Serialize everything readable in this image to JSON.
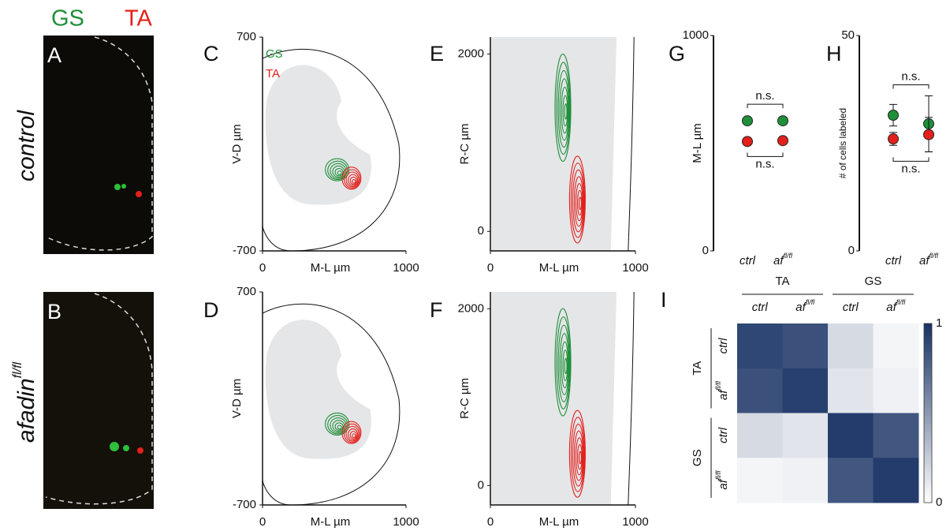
{
  "legend": {
    "gs": "GS",
    "ta": "TA"
  },
  "images": [
    {
      "label": "A",
      "row_label": "control"
    },
    {
      "label": "B",
      "row_label": "afadin",
      "row_label_superscript": "fl/fl"
    }
  ],
  "chart_data": [
    {
      "type": "contour",
      "label": "C",
      "xlabel": "M-L µm",
      "ylabel": "V-D µm",
      "xlim": [
        0,
        1000
      ],
      "ylim": [
        -700,
        700
      ],
      "xticks": [
        0,
        1000
      ],
      "yticks": [
        -700,
        700
      ],
      "series": [
        {
          "name": "GS",
          "color": "#1f8f3a"
        },
        {
          "name": "TA",
          "color": "#e3201b"
        }
      ]
    },
    {
      "type": "contour",
      "label": "D",
      "xlabel": "M-L µm",
      "ylabel": "V-D µm",
      "xlim": [
        0,
        1000
      ],
      "ylim": [
        -700,
        700
      ],
      "xticks": [
        0,
        1000
      ],
      "yticks": [
        -700,
        700
      ],
      "colors": [
        "#1f8f3a",
        "#e3201b"
      ]
    },
    {
      "type": "contour",
      "label": "E",
      "xlabel": "M-L µm",
      "ylabel": "R-C µm",
      "xlim": [
        0,
        1000
      ],
      "ylim": [
        -220,
        2190
      ],
      "xticks": [
        0,
        1000
      ],
      "yticks": [
        0,
        2000
      ],
      "colors": [
        "#1f8f3a",
        "#e3201b"
      ]
    },
    {
      "type": "contour",
      "label": "F",
      "xlabel": "M-L µm",
      "ylabel": "R-C µm",
      "xlim": [
        0,
        1000
      ],
      "ylim": [
        -220,
        2190
      ],
      "xticks": [
        0,
        1000
      ],
      "yticks": [
        0,
        2000
      ],
      "colors": [
        "#1f8f3a",
        "#e3201b"
      ]
    },
    {
      "type": "dot",
      "label": "G",
      "ylabel": "M-L µm",
      "categories": [
        "ctrl",
        "af"
      ],
      "category_superscript": "fl/fl",
      "ylim": [
        0,
        1000
      ],
      "yticks": [
        0,
        1000
      ],
      "series": [
        {
          "color": "#1f8f3a",
          "values": [
            604,
            604
          ]
        },
        {
          "color": "#e3201b",
          "values": [
            508,
            512
          ]
        }
      ],
      "annotations": [
        "n.s.",
        "n.s."
      ]
    },
    {
      "type": "dot",
      "label": "H",
      "ylabel": "# of cells labeled",
      "categories": [
        "ctrl",
        "af"
      ],
      "category_superscript": "fl/fl",
      "ylim": [
        0,
        50
      ],
      "yticks": [
        0,
        50
      ],
      "series": [
        {
          "color": "#1f8f3a",
          "values": [
            31.5,
            29.5
          ],
          "errors": [
            2.5,
            6.5
          ]
        },
        {
          "color": "#e3201b",
          "values": [
            26,
            27
          ],
          "errors": [
            1.5,
            4
          ]
        }
      ],
      "annotations": [
        "n.s.",
        "n.s."
      ]
    },
    {
      "type": "heatmap",
      "label": "I",
      "groups": [
        "TA",
        "GS"
      ],
      "subgroups": [
        "ctrl",
        "af"
      ],
      "subgroup_superscript": "fl/fl",
      "values": [
        [
          0.9,
          0.85,
          0.18,
          0.05
        ],
        [
          0.85,
          0.93,
          0.13,
          0.07
        ],
        [
          0.18,
          0.13,
          0.95,
          0.82
        ],
        [
          0.05,
          0.07,
          0.82,
          0.95
        ]
      ],
      "clim": [
        0,
        1
      ],
      "cticks": [
        0,
        1
      ]
    }
  ]
}
